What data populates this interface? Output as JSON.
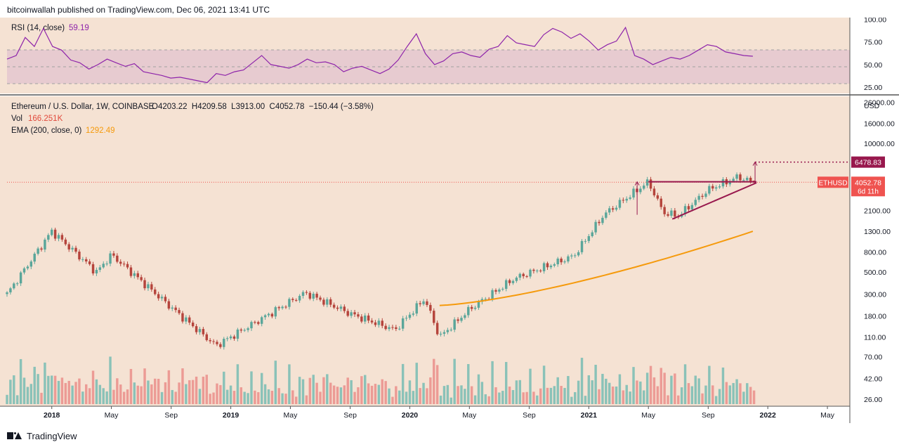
{
  "header": {
    "publisher": "bitcoinwallah published on TradingView.com, Dec 06, 2021 13:41 UTC"
  },
  "footer": {
    "brand": "TradingView"
  },
  "rsi_panel": {
    "label": "RSI (14, close)",
    "value": "59.19",
    "y_ticks": [
      "100.00",
      "75.00",
      "50.00",
      "25.00"
    ]
  },
  "price_panel": {
    "legend_symbol": "Ethereum / U.S. Dollar, 1W, COINBASE",
    "legend_ohlc": "O4203.22  H4209.58  L3913.00  C4052.78  −150.44 (−3.58%)",
    "vol_label": "Vol",
    "vol_value": "166.251K",
    "ema_label": "EMA (200, close, 0)",
    "ema_value": "1292.49",
    "currency": "USD",
    "y_ticks": [
      "26000.00",
      "16000.00",
      "10000.00",
      "2100.00",
      "1300.00",
      "800.00",
      "500.00",
      "300.00",
      "180.00",
      "110.00",
      "70.00",
      "42.00",
      "26.00"
    ],
    "target_label": "6478.83",
    "ticker_label": "ETHUSD",
    "last_price_label": "4052.78",
    "countdown_label": "6d 11h"
  },
  "x_axis": {
    "ticks": [
      "2018",
      "May",
      "Sep",
      "2019",
      "May",
      "Sep",
      "2020",
      "May",
      "Sep",
      "2021",
      "May",
      "Sep",
      "2022",
      "May"
    ]
  },
  "colors": {
    "background": "#f5e2d3",
    "up": "#5aa69a",
    "down": "#b5443c",
    "volume_up": "#8ac2b8",
    "volume_down": "#ec9b95",
    "ema": "#f59a0c",
    "rsi": "#8e24aa",
    "pattern": "#98184d",
    "last_price": "#ef5350"
  },
  "chart_data": [
    {
      "type": "line",
      "title": "RSI (14, close)",
      "series": [
        {
          "name": "RSI (14, close)",
          "values": [
            56,
            60,
            80,
            70,
            90,
            70,
            66,
            55,
            52,
            45,
            50,
            56,
            52,
            48,
            51,
            42,
            40,
            38,
            35,
            36,
            34,
            32,
            30,
            40,
            38,
            42,
            44,
            52,
            60,
            50,
            48,
            46,
            50,
            56,
            52,
            53,
            50,
            42,
            46,
            48,
            44,
            40,
            45,
            55,
            70,
            84,
            62,
            50,
            54,
            62,
            64,
            60,
            58,
            67,
            70,
            82,
            74,
            72,
            70,
            83,
            90,
            86,
            79,
            84,
            76,
            66,
            72,
            76,
            91,
            60,
            56,
            50,
            54,
            58,
            56,
            60,
            66,
            72,
            70,
            64,
            62,
            60,
            59.19
          ]
        }
      ],
      "x_range": [
        "2017-10",
        "2021-12"
      ],
      "ylim": [
        18,
        102
      ],
      "bands": {
        "upper": 70,
        "middle": 50,
        "lower": 30
      },
      "last_value": 59.19
    },
    {
      "type": "candlestick",
      "title": "Ethereum / U.S. Dollar, 1W, COINBASE",
      "scale": "log",
      "ylim": [
        22,
        30000
      ],
      "x_range": [
        "2017-10",
        "2022-06"
      ],
      "key_closes": [
        {
          "date": "2017-10",
          "close": 300
        },
        {
          "date": "2018-01",
          "close": 1300
        },
        {
          "date": "2018-04",
          "close": 500
        },
        {
          "date": "2018-05",
          "close": 750
        },
        {
          "date": "2018-09",
          "close": 220
        },
        {
          "date": "2018-12",
          "close": 90
        },
        {
          "date": "2019-06",
          "close": 310
        },
        {
          "date": "2019-09",
          "close": 190
        },
        {
          "date": "2019-12",
          "close": 130
        },
        {
          "date": "2020-02",
          "close": 270
        },
        {
          "date": "2020-03",
          "close": 110
        },
        {
          "date": "2020-05",
          "close": 210
        },
        {
          "date": "2020-08",
          "close": 430
        },
        {
          "date": "2020-12",
          "close": 730
        },
        {
          "date": "2021-02",
          "close": 1900
        },
        {
          "date": "2021-05",
          "close": 4100
        },
        {
          "date": "2021-06",
          "close": 2000
        },
        {
          "date": "2021-07",
          "close": 1850
        },
        {
          "date": "2021-09",
          "close": 3400
        },
        {
          "date": "2021-11",
          "close": 4600
        },
        {
          "date": "2021-12",
          "close": 4052.78
        }
      ],
      "ohlc_last": {
        "open": 4203.22,
        "high": 4209.58,
        "low": 3913.0,
        "close": 4052.78,
        "change": -150.44,
        "change_pct": -3.58
      },
      "ema_200": {
        "start": {
          "date": "2020-03",
          "value": 230
        },
        "end": {
          "date": "2021-12",
          "value": 1292.49
        }
      },
      "volume_last": "166.251K",
      "target_price": 6478.83,
      "annotations": [
        "ascending triangle",
        "measured move target 6478.83"
      ]
    }
  ]
}
